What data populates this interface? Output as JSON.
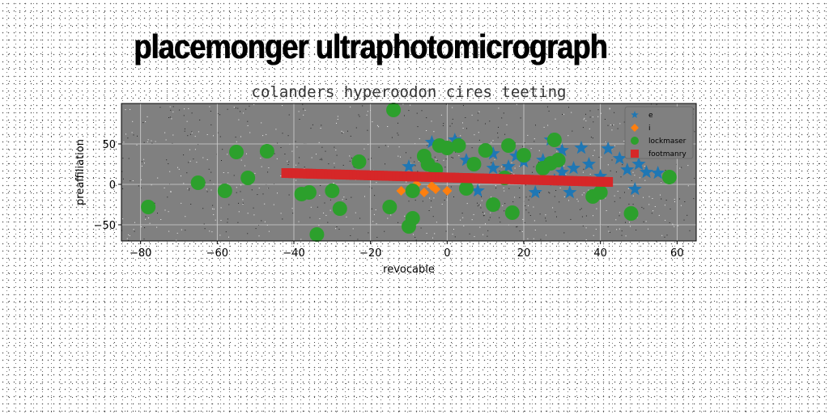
{
  "headline": "placemonger ultraphotomicrograph",
  "chart_data": {
    "type": "scatter",
    "title": "colanders hyperoodon cires teeting",
    "xlabel": "revocable",
    "ylabel": "preaffiliation",
    "xlim": [
      -85,
      65
    ],
    "ylim": [
      -70,
      100
    ],
    "xticks": [
      -80,
      -60,
      -40,
      -20,
      0,
      20,
      40,
      60
    ],
    "yticks": [
      -50,
      0,
      50
    ],
    "grid": true,
    "legend_position": "top-right",
    "plot_background": "#808080",
    "series": [
      {
        "name": "e",
        "marker": "star",
        "color": "#1f77b4",
        "points": [
          [
            -10,
            22
          ],
          [
            -4,
            52
          ],
          [
            2,
            55
          ],
          [
            5,
            30
          ],
          [
            8,
            -8
          ],
          [
            12,
            20
          ],
          [
            14,
            8
          ],
          [
            16,
            22
          ],
          [
            18,
            35
          ],
          [
            20,
            28
          ],
          [
            23,
            -10
          ],
          [
            25,
            30
          ],
          [
            27,
            55
          ],
          [
            28,
            5
          ],
          [
            30,
            15
          ],
          [
            32,
            -10
          ],
          [
            33,
            20
          ],
          [
            35,
            45
          ],
          [
            37,
            25
          ],
          [
            40,
            10
          ],
          [
            42,
            44
          ],
          [
            45,
            32
          ],
          [
            47,
            18
          ],
          [
            49,
            -6
          ],
          [
            50,
            25
          ],
          [
            52,
            15
          ],
          [
            55,
            14
          ],
          [
            30,
            42
          ],
          [
            12,
            38
          ]
        ]
      },
      {
        "name": "i",
        "marker": "diamond",
        "color": "#ff7f0e",
        "points": [
          [
            -12,
            -8
          ],
          [
            -9,
            -5
          ],
          [
            -6,
            -10
          ],
          [
            -3,
            -6
          ],
          [
            0,
            -8
          ],
          [
            -8,
            0
          ],
          [
            -4,
            -2
          ]
        ]
      },
      {
        "name": "lockmaser",
        "marker": "circle",
        "color": "#2ca02c",
        "points": [
          [
            -78,
            -28
          ],
          [
            -65,
            2
          ],
          [
            -58,
            -8
          ],
          [
            -55,
            40
          ],
          [
            -52,
            8
          ],
          [
            -47,
            41
          ],
          [
            -38,
            -12
          ],
          [
            -36,
            -10
          ],
          [
            -34,
            -62
          ],
          [
            -30,
            -8
          ],
          [
            -28,
            -30
          ],
          [
            -23,
            28
          ],
          [
            -15,
            -28
          ],
          [
            -14,
            92
          ],
          [
            -10,
            -52
          ],
          [
            -9,
            -42
          ],
          [
            -9,
            -8
          ],
          [
            -6,
            35
          ],
          [
            -5,
            25
          ],
          [
            -3,
            18
          ],
          [
            -2,
            48
          ],
          [
            0,
            45
          ],
          [
            3,
            48
          ],
          [
            5,
            -5
          ],
          [
            7,
            25
          ],
          [
            10,
            42
          ],
          [
            12,
            -25
          ],
          [
            15,
            8
          ],
          [
            16,
            48
          ],
          [
            17,
            -35
          ],
          [
            20,
            36
          ],
          [
            25,
            20
          ],
          [
            27,
            26
          ],
          [
            28,
            55
          ],
          [
            29,
            30
          ],
          [
            38,
            -15
          ],
          [
            40,
            -10
          ],
          [
            48,
            -36
          ],
          [
            58,
            9
          ]
        ]
      },
      {
        "name": "footmanry",
        "marker": "square",
        "color": "#d62728",
        "x_range": [
          -42,
          42
        ],
        "y_from": 14,
        "y_to": 3
      }
    ]
  }
}
